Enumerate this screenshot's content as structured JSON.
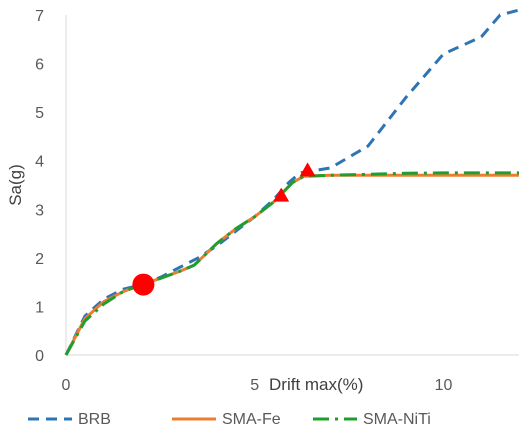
{
  "chart_data": {
    "type": "line",
    "title": "",
    "xlabel": "Drift max(%)",
    "ylabel": "Sa(g)",
    "xlim": [
      0,
      12
    ],
    "ylim": [
      0,
      7
    ],
    "x_ticks": [
      "0",
      "5",
      "10"
    ],
    "y_ticks": [
      "0",
      "1",
      "2",
      "3",
      "4",
      "5",
      "6",
      "7"
    ],
    "grid": false,
    "legend_position": "bottom",
    "series": [
      {
        "name": "BRB",
        "color": "#2E75B6",
        "style": "dashed",
        "points": [
          [
            0,
            0
          ],
          [
            0.5,
            0.8
          ],
          [
            1,
            1.15
          ],
          [
            1.5,
            1.35
          ],
          [
            2,
            1.45
          ],
          [
            2.5,
            1.6
          ],
          [
            3,
            1.8
          ],
          [
            3.5,
            2.0
          ],
          [
            4,
            2.25
          ],
          [
            4.5,
            2.55
          ],
          [
            5,
            2.85
          ],
          [
            5.5,
            3.2
          ],
          [
            5.9,
            3.55
          ],
          [
            6.2,
            3.75
          ],
          [
            7,
            3.85
          ],
          [
            8,
            4.3
          ],
          [
            9,
            5.3
          ],
          [
            10,
            6.2
          ],
          [
            11,
            6.55
          ],
          [
            11.5,
            7.0
          ],
          [
            12,
            7.1
          ]
        ]
      },
      {
        "name": "SMA-Fe",
        "color": "#ED7D31",
        "style": "solid",
        "points": [
          [
            0,
            0
          ],
          [
            0.5,
            0.75
          ],
          [
            1,
            1.1
          ],
          [
            1.5,
            1.3
          ],
          [
            2,
            1.45
          ],
          [
            2.5,
            1.58
          ],
          [
            3,
            1.72
          ],
          [
            3.4,
            1.85
          ],
          [
            4,
            2.3
          ],
          [
            4.5,
            2.6
          ],
          [
            5,
            2.85
          ],
          [
            5.5,
            3.15
          ],
          [
            6,
            3.55
          ],
          [
            6.3,
            3.68
          ],
          [
            7,
            3.7
          ],
          [
            8,
            3.7
          ],
          [
            9,
            3.7
          ],
          [
            10,
            3.7
          ],
          [
            11,
            3.7
          ],
          [
            12,
            3.7
          ]
        ]
      },
      {
        "name": "SMA-NiTi",
        "color": "#1E9E2F",
        "style": "dashdot",
        "points": [
          [
            0,
            0
          ],
          [
            0.5,
            0.7
          ],
          [
            1,
            1.05
          ],
          [
            1.5,
            1.3
          ],
          [
            2,
            1.45
          ],
          [
            2.5,
            1.58
          ],
          [
            3,
            1.72
          ],
          [
            3.4,
            1.85
          ],
          [
            4,
            2.3
          ],
          [
            4.5,
            2.6
          ],
          [
            5,
            2.85
          ],
          [
            5.5,
            3.15
          ],
          [
            6,
            3.55
          ],
          [
            6.3,
            3.68
          ],
          [
            7,
            3.7
          ],
          [
            8,
            3.72
          ],
          [
            9,
            3.74
          ],
          [
            10,
            3.75
          ],
          [
            11,
            3.75
          ],
          [
            12,
            3.75
          ]
        ]
      }
    ],
    "markers": [
      {
        "shape": "circle",
        "color": "#FF0000",
        "x": 2.05,
        "y": 1.45
      },
      {
        "shape": "triangle",
        "color": "#FF0000",
        "x": 5.7,
        "y": 3.28
      },
      {
        "shape": "triangle",
        "color": "#FF0000",
        "x": 6.4,
        "y": 3.8
      }
    ]
  }
}
